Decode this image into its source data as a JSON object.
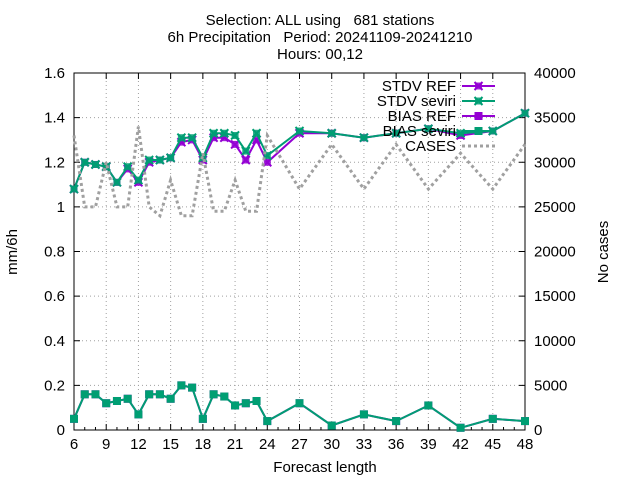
{
  "chart_data": {
    "type": "line",
    "title_lines": [
      "Selection: ALL using   681 stations",
      "6h Precipitation   Period: 20241109-20241210",
      "Hours: 00,12"
    ],
    "xlabel": "Forecast length",
    "ylabel": "mm/6h",
    "y2label": "No cases",
    "xlim": [
      6,
      48
    ],
    "ylim": [
      0,
      1.6
    ],
    "y2lim": [
      0,
      40000
    ],
    "x_ticks": [
      6,
      9,
      12,
      15,
      18,
      21,
      24,
      27,
      30,
      33,
      36,
      39,
      42,
      45,
      48
    ],
    "y_ticks": [
      "0",
      "0.2",
      "0.4",
      "0.6",
      "0.8",
      "1",
      "1.2",
      "1.4",
      "1.6"
    ],
    "y2_ticks": [
      "0",
      "5000",
      "10000",
      "15000",
      "20000",
      "25000",
      "30000",
      "35000",
      "40000"
    ],
    "grid": true,
    "legend_position": "top-right",
    "x": [
      6,
      7,
      8,
      9,
      10,
      11,
      12,
      13,
      14,
      15,
      16,
      17,
      18,
      19,
      20,
      21,
      22,
      23,
      24,
      27,
      30,
      33,
      36,
      39,
      42,
      45,
      48
    ],
    "series": [
      {
        "name": "STDV REF",
        "axis": "y1",
        "color": "#9400d3",
        "style": "line-marker-x",
        "values": [
          1.08,
          1.2,
          1.19,
          1.18,
          1.11,
          1.17,
          1.11,
          1.2,
          1.21,
          1.22,
          1.29,
          1.3,
          1.21,
          1.31,
          1.31,
          1.28,
          1.21,
          1.3,
          1.2,
          1.33,
          1.33,
          1.31,
          1.33,
          1.35,
          1.32,
          1.34,
          1.42
        ]
      },
      {
        "name": "STDV seviri",
        "axis": "y1",
        "color": "#009e73",
        "style": "line-marker-x",
        "values": [
          1.08,
          1.2,
          1.19,
          1.18,
          1.11,
          1.18,
          1.12,
          1.21,
          1.21,
          1.22,
          1.31,
          1.31,
          1.22,
          1.33,
          1.33,
          1.32,
          1.25,
          1.33,
          1.23,
          1.34,
          1.33,
          1.31,
          1.33,
          1.35,
          1.33,
          1.34,
          1.42
        ]
      },
      {
        "name": "BIAS REF",
        "axis": "y1",
        "color": "#9400d3",
        "style": "line-marker-square",
        "values": [
          0.05,
          0.16,
          0.16,
          0.12,
          0.13,
          0.14,
          0.07,
          0.16,
          0.16,
          0.14,
          0.2,
          0.19,
          0.05,
          0.16,
          0.15,
          0.11,
          0.12,
          0.13,
          0.04,
          0.12,
          0.02,
          0.07,
          0.04,
          0.11,
          0.01,
          0.05,
          0.04
        ]
      },
      {
        "name": "BIAS seviri",
        "axis": "y1",
        "color": "#009e73",
        "style": "line-marker-square",
        "values": [
          0.05,
          0.16,
          0.16,
          0.12,
          0.13,
          0.14,
          0.07,
          0.16,
          0.16,
          0.14,
          0.2,
          0.19,
          0.05,
          0.16,
          0.15,
          0.11,
          0.12,
          0.13,
          0.04,
          0.12,
          0.02,
          0.07,
          0.04,
          0.11,
          0.01,
          0.05,
          0.04
        ]
      },
      {
        "name": "CASES",
        "axis": "y2",
        "color": "#a0a0a0",
        "style": "dotted",
        "values": [
          33000,
          25000,
          25000,
          30000,
          25000,
          25000,
          34000,
          25000,
          24000,
          28000,
          24000,
          24000,
          31000,
          24500,
          24500,
          28000,
          24500,
          24500,
          33000,
          27000,
          32000,
          27000,
          32000,
          27000,
          31000,
          27000,
          32000
        ]
      }
    ]
  }
}
